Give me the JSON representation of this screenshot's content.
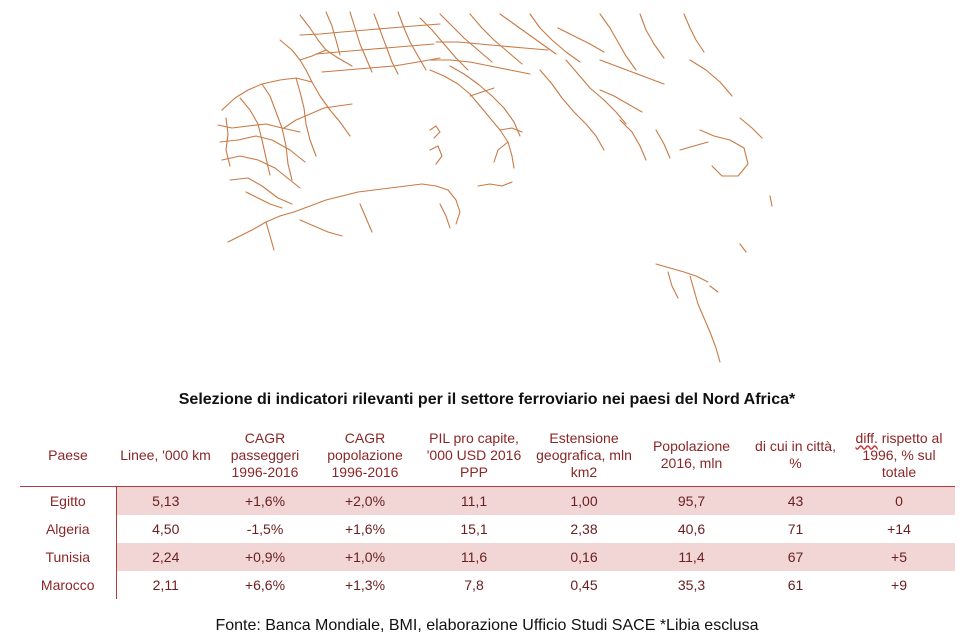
{
  "title": "Selezione di indicatori rilevanti per il settore ferroviario nei paesi del Nord Africa*",
  "table": {
    "headers": [
      "Paese",
      "Linee, '000 km",
      "CAGR passeggeri 1996-2016",
      "CAGR popolazione 1996-2016",
      "PIL pro capite, '000 USD 2016 PPP",
      "Estensione geografica, mln km2",
      "Popolazione 2016, mln",
      "di cui in città, %",
      "diff. rispetto al 1996, % sul totale"
    ],
    "last_header_prefix": "diff.",
    "last_header_rest": " rispetto al 1996, % sul totale",
    "rows": [
      [
        "Egitto",
        "5,13",
        "+1,6%",
        "+2,0%",
        "11,1",
        "1,00",
        "95,7",
        "43",
        "0"
      ],
      [
        "Algeria",
        "4,50",
        "-1,5%",
        "+1,6%",
        "15,1",
        "2,38",
        "40,6",
        "71",
        "+14"
      ],
      [
        "Tunisia",
        "2,24",
        "+0,9%",
        "+1,0%",
        "11,6",
        "0,16",
        "11,4",
        "67",
        "+5"
      ],
      [
        "Marocco",
        "2,11",
        "+6,6%",
        "+1,3%",
        "7,8",
        "0,45",
        "35,3",
        "61",
        "+9"
      ]
    ]
  },
  "source": "Fonte: Banca Mondiale, BMI, elaborazione Ufficio Studi SACE *Libia esclusa",
  "colors": {
    "rail_lines": "#c87a45",
    "table_text": "#8b2626",
    "row_shading": "#f2d6d6",
    "rule": "#b33b3b"
  },
  "icons": {
    "map": "railway-network-map"
  }
}
